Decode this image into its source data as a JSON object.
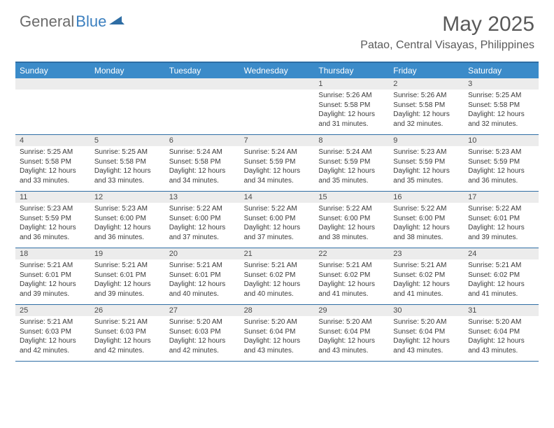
{
  "logo": {
    "text1": "General",
    "text2": "Blue"
  },
  "title": "May 2025",
  "location": "Patao, Central Visayas, Philippines",
  "colors": {
    "header_bg": "#3b8bc9",
    "border": "#2e6da4",
    "daynum_bg": "#ececec",
    "text_gray": "#5a5a5a",
    "logo_gray": "#6b6b6b",
    "logo_blue": "#3b7fbf"
  },
  "day_names": [
    "Sunday",
    "Monday",
    "Tuesday",
    "Wednesday",
    "Thursday",
    "Friday",
    "Saturday"
  ],
  "weeks": [
    [
      {
        "n": "",
        "sunrise": "",
        "sunset": "",
        "daylight1": "",
        "daylight2": ""
      },
      {
        "n": "",
        "sunrise": "",
        "sunset": "",
        "daylight1": "",
        "daylight2": ""
      },
      {
        "n": "",
        "sunrise": "",
        "sunset": "",
        "daylight1": "",
        "daylight2": ""
      },
      {
        "n": "",
        "sunrise": "",
        "sunset": "",
        "daylight1": "",
        "daylight2": ""
      },
      {
        "n": "1",
        "sunrise": "Sunrise: 5:26 AM",
        "sunset": "Sunset: 5:58 PM",
        "daylight1": "Daylight: 12 hours",
        "daylight2": "and 31 minutes."
      },
      {
        "n": "2",
        "sunrise": "Sunrise: 5:26 AM",
        "sunset": "Sunset: 5:58 PM",
        "daylight1": "Daylight: 12 hours",
        "daylight2": "and 32 minutes."
      },
      {
        "n": "3",
        "sunrise": "Sunrise: 5:25 AM",
        "sunset": "Sunset: 5:58 PM",
        "daylight1": "Daylight: 12 hours",
        "daylight2": "and 32 minutes."
      }
    ],
    [
      {
        "n": "4",
        "sunrise": "Sunrise: 5:25 AM",
        "sunset": "Sunset: 5:58 PM",
        "daylight1": "Daylight: 12 hours",
        "daylight2": "and 33 minutes."
      },
      {
        "n": "5",
        "sunrise": "Sunrise: 5:25 AM",
        "sunset": "Sunset: 5:58 PM",
        "daylight1": "Daylight: 12 hours",
        "daylight2": "and 33 minutes."
      },
      {
        "n": "6",
        "sunrise": "Sunrise: 5:24 AM",
        "sunset": "Sunset: 5:58 PM",
        "daylight1": "Daylight: 12 hours",
        "daylight2": "and 34 minutes."
      },
      {
        "n": "7",
        "sunrise": "Sunrise: 5:24 AM",
        "sunset": "Sunset: 5:59 PM",
        "daylight1": "Daylight: 12 hours",
        "daylight2": "and 34 minutes."
      },
      {
        "n": "8",
        "sunrise": "Sunrise: 5:24 AM",
        "sunset": "Sunset: 5:59 PM",
        "daylight1": "Daylight: 12 hours",
        "daylight2": "and 35 minutes."
      },
      {
        "n": "9",
        "sunrise": "Sunrise: 5:23 AM",
        "sunset": "Sunset: 5:59 PM",
        "daylight1": "Daylight: 12 hours",
        "daylight2": "and 35 minutes."
      },
      {
        "n": "10",
        "sunrise": "Sunrise: 5:23 AM",
        "sunset": "Sunset: 5:59 PM",
        "daylight1": "Daylight: 12 hours",
        "daylight2": "and 36 minutes."
      }
    ],
    [
      {
        "n": "11",
        "sunrise": "Sunrise: 5:23 AM",
        "sunset": "Sunset: 5:59 PM",
        "daylight1": "Daylight: 12 hours",
        "daylight2": "and 36 minutes."
      },
      {
        "n": "12",
        "sunrise": "Sunrise: 5:23 AM",
        "sunset": "Sunset: 6:00 PM",
        "daylight1": "Daylight: 12 hours",
        "daylight2": "and 36 minutes."
      },
      {
        "n": "13",
        "sunrise": "Sunrise: 5:22 AM",
        "sunset": "Sunset: 6:00 PM",
        "daylight1": "Daylight: 12 hours",
        "daylight2": "and 37 minutes."
      },
      {
        "n": "14",
        "sunrise": "Sunrise: 5:22 AM",
        "sunset": "Sunset: 6:00 PM",
        "daylight1": "Daylight: 12 hours",
        "daylight2": "and 37 minutes."
      },
      {
        "n": "15",
        "sunrise": "Sunrise: 5:22 AM",
        "sunset": "Sunset: 6:00 PM",
        "daylight1": "Daylight: 12 hours",
        "daylight2": "and 38 minutes."
      },
      {
        "n": "16",
        "sunrise": "Sunrise: 5:22 AM",
        "sunset": "Sunset: 6:00 PM",
        "daylight1": "Daylight: 12 hours",
        "daylight2": "and 38 minutes."
      },
      {
        "n": "17",
        "sunrise": "Sunrise: 5:22 AM",
        "sunset": "Sunset: 6:01 PM",
        "daylight1": "Daylight: 12 hours",
        "daylight2": "and 39 minutes."
      }
    ],
    [
      {
        "n": "18",
        "sunrise": "Sunrise: 5:21 AM",
        "sunset": "Sunset: 6:01 PM",
        "daylight1": "Daylight: 12 hours",
        "daylight2": "and 39 minutes."
      },
      {
        "n": "19",
        "sunrise": "Sunrise: 5:21 AM",
        "sunset": "Sunset: 6:01 PM",
        "daylight1": "Daylight: 12 hours",
        "daylight2": "and 39 minutes."
      },
      {
        "n": "20",
        "sunrise": "Sunrise: 5:21 AM",
        "sunset": "Sunset: 6:01 PM",
        "daylight1": "Daylight: 12 hours",
        "daylight2": "and 40 minutes."
      },
      {
        "n": "21",
        "sunrise": "Sunrise: 5:21 AM",
        "sunset": "Sunset: 6:02 PM",
        "daylight1": "Daylight: 12 hours",
        "daylight2": "and 40 minutes."
      },
      {
        "n": "22",
        "sunrise": "Sunrise: 5:21 AM",
        "sunset": "Sunset: 6:02 PM",
        "daylight1": "Daylight: 12 hours",
        "daylight2": "and 41 minutes."
      },
      {
        "n": "23",
        "sunrise": "Sunrise: 5:21 AM",
        "sunset": "Sunset: 6:02 PM",
        "daylight1": "Daylight: 12 hours",
        "daylight2": "and 41 minutes."
      },
      {
        "n": "24",
        "sunrise": "Sunrise: 5:21 AM",
        "sunset": "Sunset: 6:02 PM",
        "daylight1": "Daylight: 12 hours",
        "daylight2": "and 41 minutes."
      }
    ],
    [
      {
        "n": "25",
        "sunrise": "Sunrise: 5:21 AM",
        "sunset": "Sunset: 6:03 PM",
        "daylight1": "Daylight: 12 hours",
        "daylight2": "and 42 minutes."
      },
      {
        "n": "26",
        "sunrise": "Sunrise: 5:21 AM",
        "sunset": "Sunset: 6:03 PM",
        "daylight1": "Daylight: 12 hours",
        "daylight2": "and 42 minutes."
      },
      {
        "n": "27",
        "sunrise": "Sunrise: 5:20 AM",
        "sunset": "Sunset: 6:03 PM",
        "daylight1": "Daylight: 12 hours",
        "daylight2": "and 42 minutes."
      },
      {
        "n": "28",
        "sunrise": "Sunrise: 5:20 AM",
        "sunset": "Sunset: 6:04 PM",
        "daylight1": "Daylight: 12 hours",
        "daylight2": "and 43 minutes."
      },
      {
        "n": "29",
        "sunrise": "Sunrise: 5:20 AM",
        "sunset": "Sunset: 6:04 PM",
        "daylight1": "Daylight: 12 hours",
        "daylight2": "and 43 minutes."
      },
      {
        "n": "30",
        "sunrise": "Sunrise: 5:20 AM",
        "sunset": "Sunset: 6:04 PM",
        "daylight1": "Daylight: 12 hours",
        "daylight2": "and 43 minutes."
      },
      {
        "n": "31",
        "sunrise": "Sunrise: 5:20 AM",
        "sunset": "Sunset: 6:04 PM",
        "daylight1": "Daylight: 12 hours",
        "daylight2": "and 43 minutes."
      }
    ]
  ]
}
